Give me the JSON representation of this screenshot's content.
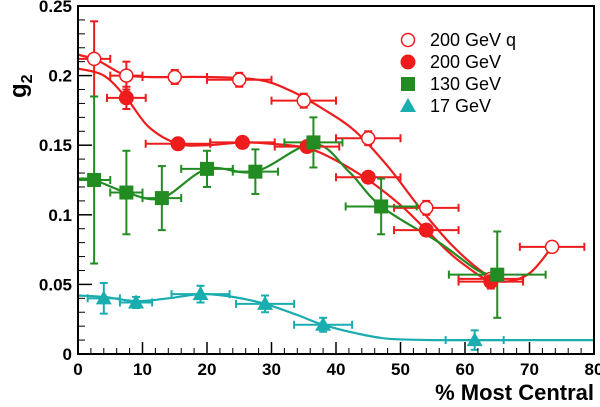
{
  "chart_data": {
    "type": "scatter",
    "xlabel": "% Most Central",
    "ylabel": "g",
    "ylabel_sub": "2",
    "xlim": [
      0,
      80
    ],
    "ylim": [
      0,
      0.25
    ],
    "xticks": [
      "0",
      "10",
      "20",
      "30",
      "40",
      "50",
      "60",
      "70",
      "80"
    ],
    "yticks": [
      "0",
      "0.05",
      "0.1",
      "0.15",
      "0.2",
      "0.25"
    ],
    "grid": false,
    "legend_position": "top-right",
    "series": [
      {
        "name": "200 GeV q",
        "color": "#ee1c1c",
        "marker": "circle-open",
        "points": [
          {
            "x": 2.5,
            "y": 0.212,
            "xerr": 2.5,
            "yerr": 0.027
          },
          {
            "x": 7.5,
            "y": 0.2,
            "xerr": 2.5,
            "yerr": 0.01
          },
          {
            "x": 15.0,
            "y": 0.199,
            "xerr": 5.0,
            "yerr": 0.005
          },
          {
            "x": 25.0,
            "y": 0.197,
            "xerr": 5.0,
            "yerr": 0.005
          },
          {
            "x": 35.0,
            "y": 0.182,
            "xerr": 5.0,
            "yerr": 0.005
          },
          {
            "x": 45.0,
            "y": 0.155,
            "xerr": 5.0,
            "yerr": 0.005
          },
          {
            "x": 54.0,
            "y": 0.105,
            "xerr": 5.0,
            "yerr": 0.005
          },
          {
            "x": 64.0,
            "y": 0.054,
            "xerr": 5.0,
            "yerr": 0.003
          },
          {
            "x": 73.5,
            "y": 0.077,
            "xerr": 5.0,
            "yerr": 0.003
          }
        ],
        "curve": [
          [
            0,
            0.215
          ],
          [
            3,
            0.211
          ],
          [
            7,
            0.201
          ],
          [
            11,
            0.199
          ],
          [
            20,
            0.199
          ],
          [
            28,
            0.197
          ],
          [
            33,
            0.189
          ],
          [
            38,
            0.176
          ],
          [
            43,
            0.16
          ],
          [
            48,
            0.135
          ],
          [
            53,
            0.105
          ],
          [
            58,
            0.078
          ],
          [
            63,
            0.058
          ],
          [
            66,
            0.052
          ],
          [
            70,
            0.058
          ],
          [
            73.5,
            0.077
          ]
        ]
      },
      {
        "name": "200 GeV",
        "color": "#ee1c1c",
        "marker": "circle",
        "points": [
          {
            "x": 7.5,
            "y": 0.184,
            "xerr": 3.0,
            "yerr": 0.008
          },
          {
            "x": 15.5,
            "y": 0.151,
            "xerr": 5.0,
            "yerr": 0.003
          },
          {
            "x": 25.5,
            "y": 0.152,
            "xerr": 5.0,
            "yerr": 0.003
          },
          {
            "x": 35.5,
            "y": 0.149,
            "xerr": 5.0,
            "yerr": 0.003
          },
          {
            "x": 45.0,
            "y": 0.127,
            "xerr": 5.0,
            "yerr": 0.003
          },
          {
            "x": 54.0,
            "y": 0.089,
            "xerr": 5.0,
            "yerr": 0.004
          },
          {
            "x": 64.0,
            "y": 0.052,
            "xerr": 5.0,
            "yerr": 0.005
          }
        ],
        "curve": [
          [
            0,
            0.205
          ],
          [
            4,
            0.2
          ],
          [
            7.5,
            0.184
          ],
          [
            11,
            0.163
          ],
          [
            15.5,
            0.151
          ],
          [
            20,
            0.15
          ],
          [
            25.5,
            0.152
          ],
          [
            30,
            0.151
          ],
          [
            35.5,
            0.148
          ],
          [
            40,
            0.139
          ],
          [
            45,
            0.125
          ],
          [
            50,
            0.107
          ],
          [
            54,
            0.089
          ],
          [
            58,
            0.071
          ],
          [
            62,
            0.057
          ],
          [
            64,
            0.052
          ]
        ]
      },
      {
        "name": "130 GeV",
        "color": "#228b22",
        "marker": "square",
        "points": [
          {
            "x": 2.5,
            "y": 0.125,
            "xerr": 2.5,
            "yerr": 0.06
          },
          {
            "x": 7.5,
            "y": 0.116,
            "xerr": 2.5,
            "yerr": 0.03
          },
          {
            "x": 13.0,
            "y": 0.112,
            "xerr": 3.0,
            "yerr": 0.023
          },
          {
            "x": 20.0,
            "y": 0.133,
            "xerr": 4.0,
            "yerr": 0.013
          },
          {
            "x": 27.5,
            "y": 0.131,
            "xerr": 3.5,
            "yerr": 0.016
          },
          {
            "x": 36.5,
            "y": 0.152,
            "xerr": 4.5,
            "yerr": 0.018
          },
          {
            "x": 47.0,
            "y": 0.106,
            "xerr": 5.5,
            "yerr": 0.02
          },
          {
            "x": 65.0,
            "y": 0.057,
            "xerr": 7.5,
            "yerr": 0.031
          }
        ],
        "curve": [
          [
            0,
            0.126
          ],
          [
            2.5,
            0.125
          ],
          [
            7.5,
            0.116
          ],
          [
            13,
            0.112
          ],
          [
            20,
            0.133
          ],
          [
            27.5,
            0.131
          ],
          [
            36.5,
            0.151
          ],
          [
            42,
            0.131
          ],
          [
            47,
            0.106
          ],
          [
            56,
            0.08
          ],
          [
            62,
            0.06
          ],
          [
            65,
            0.057
          ]
        ]
      },
      {
        "name": "17 GeV",
        "color": "#1aadb0",
        "marker": "triangle",
        "points": [
          {
            "x": 4.0,
            "y": 0.04,
            "xerr": 2.5,
            "yerr": 0.011
          },
          {
            "x": 9.0,
            "y": 0.037,
            "xerr": 2.5,
            "yerr": 0.004
          },
          {
            "x": 19.0,
            "y": 0.043,
            "xerr": 4.5,
            "yerr": 0.006
          },
          {
            "x": 29.0,
            "y": 0.036,
            "xerr": 4.5,
            "yerr": 0.006
          },
          {
            "x": 38.0,
            "y": 0.021,
            "xerr": 4.5,
            "yerr": 0.005
          },
          {
            "x": 61.5,
            "y": 0.01,
            "xerr": 4.5,
            "yerr": 0.007
          }
        ],
        "curve": [
          [
            0,
            0.042
          ],
          [
            4,
            0.041
          ],
          [
            9,
            0.038
          ],
          [
            14,
            0.04
          ],
          [
            19,
            0.043
          ],
          [
            24,
            0.041
          ],
          [
            29,
            0.036
          ],
          [
            34,
            0.028
          ],
          [
            38,
            0.021
          ],
          [
            43,
            0.015
          ],
          [
            48,
            0.011
          ],
          [
            55,
            0.01
          ],
          [
            62,
            0.01
          ],
          [
            80,
            0.01
          ]
        ]
      }
    ]
  }
}
